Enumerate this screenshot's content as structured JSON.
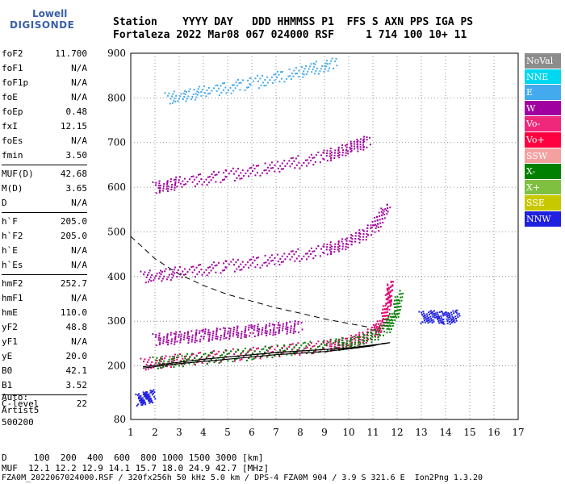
{
  "brand": {
    "line1": "Lowell",
    "line2": "DIGISONDE"
  },
  "header": {
    "row1": "Station    YYYY DAY   DDD HHMMSS P1  FFS S AXN PPS IGA PS",
    "row2": "Fortaleza 2022 Mar08 067 024000 RSF     1 714 100 10+ 11"
  },
  "params": [
    {
      "label": "foF2",
      "value": "11.700"
    },
    {
      "label": "foF1",
      "value": "N/A"
    },
    {
      "label": "foF1p",
      "value": "N/A"
    },
    {
      "label": "foE",
      "value": "N/A"
    },
    {
      "label": "foEp",
      "value": "0.48"
    },
    {
      "label": "fxI",
      "value": "12.15"
    },
    {
      "label": "foEs",
      "value": "N/A"
    },
    {
      "label": "fmin",
      "value": "3.50"
    },
    {
      "label": "MUF(D)",
      "value": "42.68",
      "sep": true
    },
    {
      "label": "M(D)",
      "value": "3.65"
    },
    {
      "label": "D",
      "value": "N/A"
    },
    {
      "label": "h`F",
      "value": "205.0",
      "sep": true
    },
    {
      "label": "h`F2",
      "value": "205.0"
    },
    {
      "label": "h`E",
      "value": "N/A"
    },
    {
      "label": "h`Es",
      "value": "N/A"
    },
    {
      "label": "hmF2",
      "value": "252.7",
      "sep": true
    },
    {
      "label": "hmF1",
      "value": "N/A"
    },
    {
      "label": "hmE",
      "value": "110.0"
    },
    {
      "label": "yF2",
      "value": "48.8"
    },
    {
      "label": "yF1",
      "value": "N/A"
    },
    {
      "label": "yE",
      "value": "20.0"
    },
    {
      "label": "B0",
      "value": "42.1"
    },
    {
      "label": "B1",
      "value": "3.52"
    },
    {
      "label": "C-level",
      "value": "22",
      "sep": true
    }
  ],
  "auto": {
    "l1": "Auto:",
    "l2": "Artist5",
    "l3": "500200"
  },
  "legend": [
    {
      "label": "NoVal",
      "color": "#8c8c8c"
    },
    {
      "label": "NNE",
      "color": "#00d7f0"
    },
    {
      "label": "E",
      "color": "#44aaee"
    },
    {
      "label": "W",
      "color": "#a000a0"
    },
    {
      "label": "Vo-",
      "color": "#f0287c"
    },
    {
      "label": "Vo+",
      "color": "#ff0040"
    },
    {
      "label": "SSW",
      "color": "#f4a0a0"
    },
    {
      "label": "X-",
      "color": "#008000"
    },
    {
      "label": "X+",
      "color": "#80c040"
    },
    {
      "label": "SSE",
      "color": "#c8c800"
    },
    {
      "label": "NNW",
      "color": "#2020e0"
    }
  ],
  "footer": {
    "d_row": "D     100  200  400  600  800 1000 1500 3000 [km]",
    "muf_row": "MUF  12.1 12.2 12.9 14.1 15.7 18.0 24.9 42.7 [MHz]",
    "file_row": "FZA0M_2022067024000.RSF / 320fx256h 50 kHz 5.0 km / DPS-4 FZA0M 904 / 3.9 S 321.6 E  Ion2Png 1.3.20"
  },
  "chart_data": {
    "type": "scatter",
    "xlim": [
      1,
      17
    ],
    "ylim": [
      80,
      900
    ],
    "x_ticks": [
      1,
      2,
      3,
      4,
      5,
      6,
      7,
      8,
      9,
      10,
      11,
      12,
      13,
      14,
      15,
      16,
      17
    ],
    "y_ticks": [
      80,
      200,
      300,
      400,
      500,
      600,
      700,
      800,
      900
    ],
    "grid": true,
    "traces": [
      {
        "name": "O-trace first hop",
        "color": "#e0006e",
        "x": [
          1.5,
          3,
          5,
          7,
          9,
          10,
          11,
          11.4,
          11.6,
          11.7
        ],
        "y": [
          205,
          215,
          225,
          235,
          245,
          255,
          275,
          300,
          340,
          390
        ]
      },
      {
        "name": "X-trace first hop",
        "color": "#008000",
        "x": [
          2,
          3.5,
          5.5,
          7.5,
          9.5,
          10.5,
          11.5,
          11.9,
          12.1
        ],
        "y": [
          208,
          216,
          226,
          238,
          248,
          258,
          285,
          320,
          360
        ]
      },
      {
        "name": "second hop",
        "color": "#a000a0",
        "x": [
          1.5,
          3,
          5,
          7,
          9,
          10,
          11,
          11.6
        ],
        "y": [
          400,
          410,
          425,
          440,
          460,
          480,
          510,
          560
        ]
      },
      {
        "name": "third hop",
        "color": "#a000a0",
        "x": [
          2,
          3,
          5,
          7,
          9,
          10,
          10.8
        ],
        "y": [
          600,
          612,
          628,
          648,
          670,
          690,
          705
        ]
      },
      {
        "name": "fourth hop",
        "color": "#44aaee",
        "x": [
          2.5,
          4,
          6,
          8,
          9.5
        ],
        "y": [
          800,
          815,
          835,
          860,
          880
        ]
      },
      {
        "name": "spread upper",
        "color": "#a000a0",
        "x": [
          2,
          3,
          4,
          5,
          6,
          7,
          8
        ],
        "y": [
          260,
          265,
          270,
          275,
          280,
          285,
          290
        ]
      },
      {
        "name": "NNW echoes",
        "color": "#2020e0",
        "x": [
          13,
          13.5,
          14,
          14.5
        ],
        "y": [
          310,
          312,
          308,
          315
        ]
      },
      {
        "name": "low echoes",
        "color": "#2020e0",
        "x": [
          1.3,
          1.6,
          1.9
        ],
        "y": [
          125,
          130,
          135
        ]
      }
    ],
    "profile_curve": {
      "x": [
        1.5,
        3,
        5,
        7,
        9,
        10,
        11,
        11.4,
        11.7,
        11.5,
        10,
        7,
        4,
        1.5
      ],
      "y": [
        195,
        205,
        215,
        225,
        232,
        238,
        245,
        250,
        252,
        250,
        240,
        230,
        215,
        198
      ]
    },
    "dashed_curve": {
      "x": [
        1,
        2,
        3,
        4,
        5,
        6,
        7,
        8,
        9,
        10,
        11
      ],
      "y": [
        490,
        440,
        405,
        380,
        360,
        345,
        330,
        318,
        305,
        295,
        285
      ]
    }
  }
}
